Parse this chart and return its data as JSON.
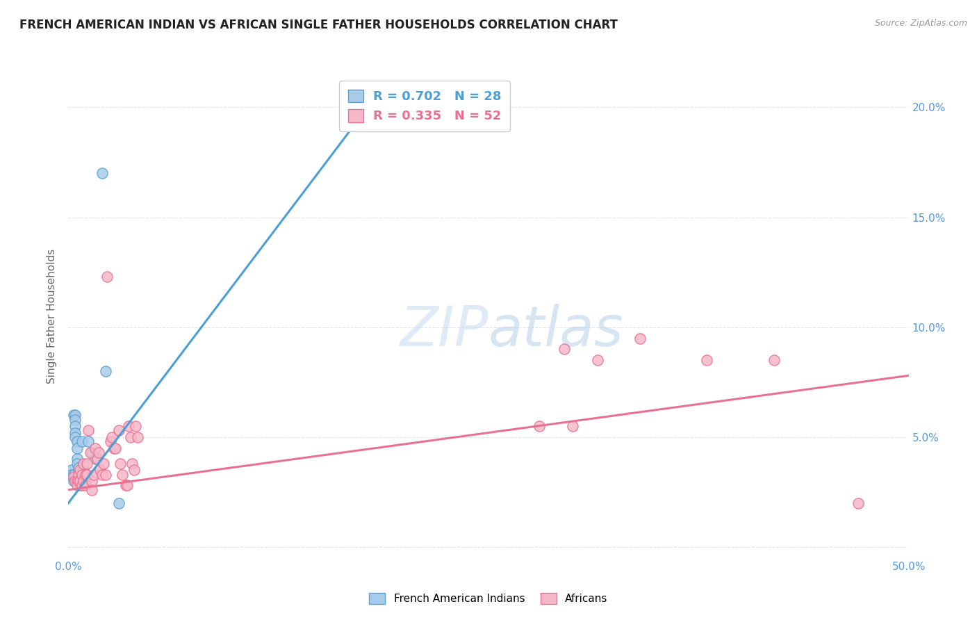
{
  "title": "FRENCH AMERICAN INDIAN VS AFRICAN SINGLE FATHER HOUSEHOLDS CORRELATION CHART",
  "source": "Source: ZipAtlas.com",
  "ylabel": "Single Father Households",
  "xlim": [
    0.0,
    0.5
  ],
  "ylim": [
    -0.005,
    0.215
  ],
  "xticks": [
    0.0,
    0.1,
    0.2,
    0.3,
    0.4,
    0.5
  ],
  "yticks": [
    0.0,
    0.05,
    0.1,
    0.15,
    0.2
  ],
  "xticklabels": [
    "0.0%",
    "",
    "",
    "",
    "",
    "50.0%"
  ],
  "yticklabels_left": [
    "",
    "5.0%",
    "10.0%",
    "15.0%",
    "20.0%"
  ],
  "yticklabels_right": [
    "",
    "5.0%",
    "10.0%",
    "15.0%",
    "20.0%"
  ],
  "blue_label": "French American Indians",
  "pink_label": "Africans",
  "blue_R": "R = 0.702",
  "blue_N": "N = 28",
  "pink_R": "R = 0.335",
  "pink_N": "N = 52",
  "blue_color": "#a8cce8",
  "pink_color": "#f5b8c8",
  "blue_edge_color": "#5a9fd4",
  "pink_edge_color": "#e87090",
  "blue_line_color": "#4a9fd4",
  "pink_line_color": "#e87090",
  "legend_text_blue": "#4a9fd4",
  "legend_text_pink": "#e87090",
  "tick_color": "#5599dd",
  "watermark_color": "#dce8f5",
  "background_color": "#ffffff",
  "grid_color": "#dde6f0",
  "blue_points": [
    [
      0.002,
      0.035
    ],
    [
      0.002,
      0.033
    ],
    [
      0.003,
      0.06
    ],
    [
      0.003,
      0.033
    ],
    [
      0.003,
      0.03
    ],
    [
      0.004,
      0.06
    ],
    [
      0.004,
      0.058
    ],
    [
      0.004,
      0.055
    ],
    [
      0.004,
      0.052
    ],
    [
      0.004,
      0.05
    ],
    [
      0.005,
      0.048
    ],
    [
      0.005,
      0.045
    ],
    [
      0.005,
      0.04
    ],
    [
      0.005,
      0.038
    ],
    [
      0.006,
      0.036
    ],
    [
      0.006,
      0.033
    ],
    [
      0.006,
      0.03
    ],
    [
      0.007,
      0.03
    ],
    [
      0.007,
      0.028
    ],
    [
      0.008,
      0.048
    ],
    [
      0.009,
      0.035
    ],
    [
      0.01,
      0.03
    ],
    [
      0.012,
      0.048
    ],
    [
      0.014,
      0.043
    ],
    [
      0.016,
      0.04
    ],
    [
      0.02,
      0.17
    ],
    [
      0.022,
      0.08
    ],
    [
      0.03,
      0.02
    ]
  ],
  "pink_points": [
    [
      0.003,
      0.032
    ],
    [
      0.004,
      0.03
    ],
    [
      0.005,
      0.03
    ],
    [
      0.005,
      0.028
    ],
    [
      0.006,
      0.033
    ],
    [
      0.006,
      0.03
    ],
    [
      0.007,
      0.035
    ],
    [
      0.007,
      0.03
    ],
    [
      0.008,
      0.033
    ],
    [
      0.008,
      0.028
    ],
    [
      0.009,
      0.038
    ],
    [
      0.009,
      0.03
    ],
    [
      0.01,
      0.033
    ],
    [
      0.01,
      0.028
    ],
    [
      0.011,
      0.038
    ],
    [
      0.011,
      0.033
    ],
    [
      0.012,
      0.053
    ],
    [
      0.013,
      0.043
    ],
    [
      0.014,
      0.03
    ],
    [
      0.014,
      0.026
    ],
    [
      0.015,
      0.033
    ],
    [
      0.016,
      0.045
    ],
    [
      0.017,
      0.04
    ],
    [
      0.018,
      0.043
    ],
    [
      0.019,
      0.035
    ],
    [
      0.02,
      0.033
    ],
    [
      0.021,
      0.038
    ],
    [
      0.022,
      0.033
    ],
    [
      0.023,
      0.123
    ],
    [
      0.025,
      0.048
    ],
    [
      0.026,
      0.05
    ],
    [
      0.027,
      0.045
    ],
    [
      0.028,
      0.045
    ],
    [
      0.03,
      0.053
    ],
    [
      0.031,
      0.038
    ],
    [
      0.032,
      0.033
    ],
    [
      0.034,
      0.028
    ],
    [
      0.035,
      0.028
    ],
    [
      0.036,
      0.055
    ],
    [
      0.037,
      0.05
    ],
    [
      0.038,
      0.038
    ],
    [
      0.039,
      0.035
    ],
    [
      0.04,
      0.055
    ],
    [
      0.041,
      0.05
    ],
    [
      0.28,
      0.055
    ],
    [
      0.295,
      0.09
    ],
    [
      0.3,
      0.055
    ],
    [
      0.315,
      0.085
    ],
    [
      0.34,
      0.095
    ],
    [
      0.38,
      0.085
    ],
    [
      0.42,
      0.085
    ],
    [
      0.47,
      0.02
    ]
  ],
  "blue_trend_x": [
    0.0,
    0.185
  ],
  "blue_trend_y": [
    0.02,
    0.207
  ],
  "pink_trend_x": [
    0.0,
    0.5
  ],
  "pink_trend_y": [
    0.026,
    0.078
  ]
}
